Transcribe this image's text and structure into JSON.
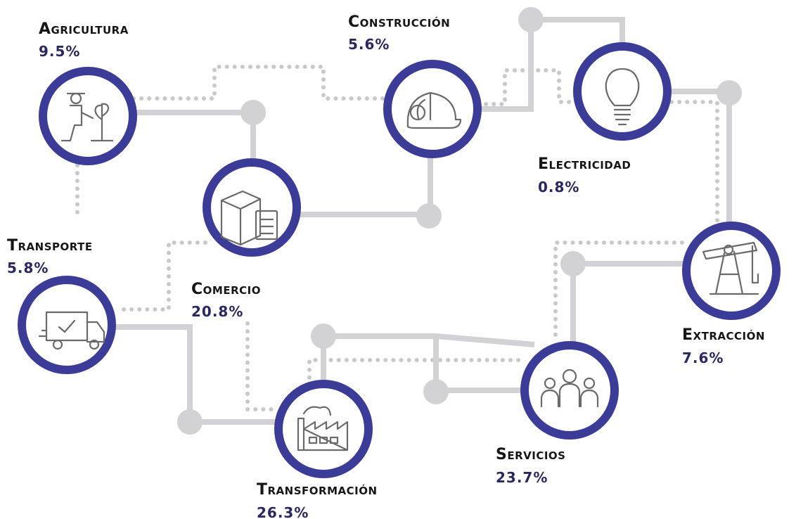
{
  "nodes": [
    {
      "label": "Agricultura",
      "value": "9.5%"
    },
    {
      "label": "Construcción",
      "value": "5.6%"
    },
    {
      "label": "Electricidad",
      "value": "0.8%"
    },
    {
      "label": "Comercio",
      "value": "20.8%"
    },
    {
      "label": "Transporte",
      "value": "5.8%"
    },
    {
      "label": "Extracción",
      "value": "7.6%"
    },
    {
      "label": "Servicios",
      "value": "23.7%"
    },
    {
      "label": "Transformación",
      "value": "26.3%"
    }
  ]
}
